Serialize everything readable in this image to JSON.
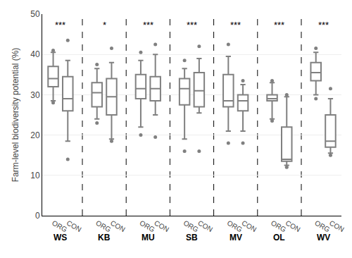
{
  "chart_data": {
    "type": "box",
    "ylabel": "Farm-level biodiversity potential (%)",
    "groups": [
      "WS",
      "KB",
      "MU",
      "SB",
      "MV",
      "OL",
      "WV"
    ],
    "annotations": [
      "***",
      "*",
      "***",
      "***",
      "***",
      "***",
      "***"
    ],
    "annotation_y": 49,
    "categories": [
      "ORG",
      "CON",
      "ORG",
      "CON",
      "ORG",
      "CON",
      "ORG",
      "CON",
      "ORG",
      "CON",
      "ORG",
      "CON",
      "ORG",
      "CON"
    ],
    "values": [
      {
        "q5": 28,
        "q10": 28.5,
        "q25": 32,
        "median": 34,
        "q75": 37,
        "q90": 40.5,
        "q95": 41
      },
      {
        "q5": 14,
        "q10": 18.5,
        "q25": 26,
        "median": 29,
        "q75": 34.5,
        "q90": 38.5,
        "q95": 43.5
      },
      {
        "q5": 23,
        "q10": 24,
        "q25": 27,
        "median": 30.5,
        "q75": 33,
        "q90": 36.5,
        "q95": 37.5
      },
      {
        "q5": 18.5,
        "q10": 19,
        "q25": 25,
        "median": 29.5,
        "q75": 34,
        "q90": 38,
        "q95": 41.5
      },
      {
        "q5": 20,
        "q10": 22,
        "q25": 29,
        "median": 31.5,
        "q75": 35,
        "q90": 38.5,
        "q95": 40.5
      },
      {
        "q5": 19.5,
        "q10": 25,
        "q25": 28.5,
        "median": 31.5,
        "q75": 34.5,
        "q90": 40,
        "q95": 42.5
      },
      {
        "q5": 16,
        "q10": 19,
        "q25": 27.5,
        "median": 31.5,
        "q75": 34,
        "q90": 36.5,
        "q95": 38.5
      },
      {
        "q5": 16,
        "q10": 25.5,
        "q25": 27,
        "median": 31,
        "q75": 35.5,
        "q90": 39,
        "q95": 42
      },
      {
        "q5": 18,
        "q10": 21,
        "q25": 27,
        "median": 28.5,
        "q75": 35,
        "q90": 39.5,
        "q95": 42.5
      },
      {
        "q5": 18,
        "q10": 21,
        "q25": 26,
        "median": 28.5,
        "q75": 30,
        "q90": 32.5,
        "q95": 33.5
      },
      {
        "q5": 23.5,
        "q10": 24,
        "q25": 28.5,
        "median": 29,
        "q75": 30,
        "q90": 33,
        "q95": 33.5
      },
      {
        "q5": 12,
        "q10": 12.5,
        "q25": 13.5,
        "median": 14,
        "q75": 22,
        "q90": 29.5,
        "q95": 30
      },
      {
        "q5": 29,
        "q10": 30,
        "q25": 33.5,
        "median": 35.5,
        "q75": 38,
        "q90": 40.5,
        "q95": 41.5
      },
      {
        "q5": 15,
        "q10": 15.5,
        "q25": 17,
        "median": 18.5,
        "q75": 25,
        "q90": 29,
        "q95": 31.5
      }
    ],
    "color": "#808080",
    "ylim": [
      0,
      50
    ],
    "yticks": [
      0,
      10,
      20,
      30,
      40,
      50
    ],
    "grid": true
  }
}
